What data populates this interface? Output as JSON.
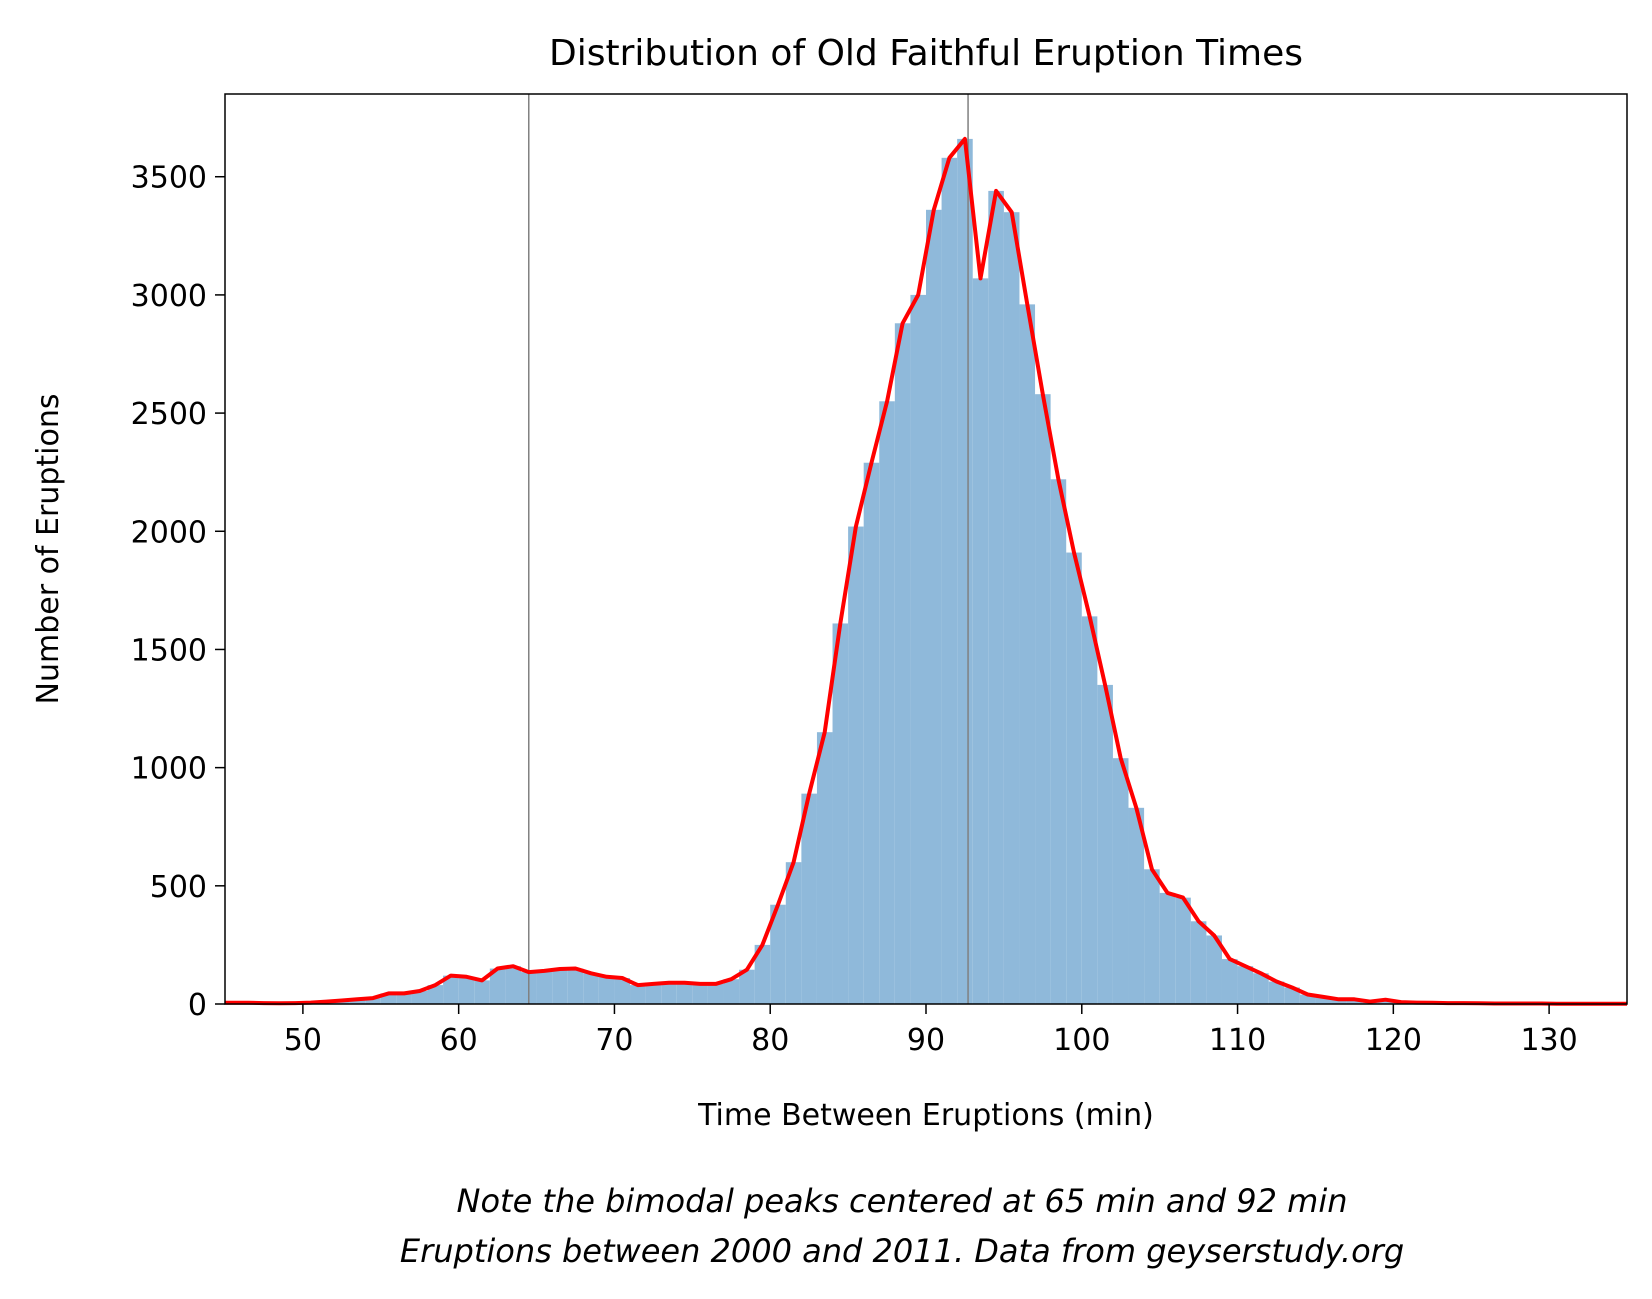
{
  "chart_data": {
    "type": "bar",
    "title": "Distribution of Old Faithful Eruption Times",
    "xlabel": "Time Between Eruptions (min)",
    "ylabel": "Number of Eruptions",
    "xlim": [
      45,
      135
    ],
    "ylim": [
      0,
      3850
    ],
    "xticks": [
      50,
      60,
      70,
      80,
      90,
      100,
      110,
      120,
      130
    ],
    "yticks": [
      0,
      500,
      1000,
      1500,
      2000,
      2500,
      3000,
      3500
    ],
    "bin_width": 1,
    "bins": [
      [
        45,
        5
      ],
      [
        46,
        5
      ],
      [
        47,
        4
      ],
      [
        48,
        3
      ],
      [
        49,
        4
      ],
      [
        50,
        6
      ],
      [
        51,
        10
      ],
      [
        52,
        15
      ],
      [
        53,
        20
      ],
      [
        54,
        25
      ],
      [
        55,
        45
      ],
      [
        56,
        45
      ],
      [
        57,
        55
      ],
      [
        58,
        80
      ],
      [
        59,
        120
      ],
      [
        60,
        115
      ],
      [
        61,
        100
      ],
      [
        62,
        150
      ],
      [
        63,
        160
      ],
      [
        64,
        135
      ],
      [
        65,
        140
      ],
      [
        66,
        148
      ],
      [
        67,
        150
      ],
      [
        68,
        130
      ],
      [
        69,
        115
      ],
      [
        70,
        110
      ],
      [
        71,
        80
      ],
      [
        72,
        85
      ],
      [
        73,
        90
      ],
      [
        74,
        90
      ],
      [
        75,
        85
      ],
      [
        76,
        85
      ],
      [
        77,
        105
      ],
      [
        78,
        145
      ],
      [
        79,
        250
      ],
      [
        80,
        420
      ],
      [
        81,
        600
      ],
      [
        82,
        890
      ],
      [
        83,
        1150
      ],
      [
        84,
        1610
      ],
      [
        85,
        2020
      ],
      [
        86,
        2290
      ],
      [
        87,
        2550
      ],
      [
        88,
        2880
      ],
      [
        89,
        3000
      ],
      [
        90,
        3360
      ],
      [
        91,
        3580
      ],
      [
        92,
        3660
      ],
      [
        93,
        3070
      ],
      [
        94,
        3440
      ],
      [
        95,
        3350
      ],
      [
        96,
        2960
      ],
      [
        97,
        2580
      ],
      [
        98,
        2220
      ],
      [
        99,
        1910
      ],
      [
        100,
        1640
      ],
      [
        101,
        1350
      ],
      [
        102,
        1040
      ],
      [
        103,
        830
      ],
      [
        104,
        570
      ],
      [
        105,
        470
      ],
      [
        106,
        450
      ],
      [
        107,
        350
      ],
      [
        108,
        290
      ],
      [
        109,
        190
      ],
      [
        110,
        160
      ],
      [
        111,
        130
      ],
      [
        112,
        95
      ],
      [
        113,
        70
      ],
      [
        114,
        40
      ],
      [
        115,
        30
      ],
      [
        116,
        20
      ],
      [
        117,
        20
      ],
      [
        118,
        10
      ],
      [
        119,
        18
      ],
      [
        120,
        8
      ],
      [
        121,
        6
      ],
      [
        122,
        5
      ],
      [
        123,
        4
      ],
      [
        124,
        4
      ],
      [
        125,
        3
      ],
      [
        126,
        2
      ],
      [
        127,
        2
      ],
      [
        128,
        2
      ],
      [
        129,
        2
      ],
      [
        130,
        1
      ],
      [
        131,
        1
      ],
      [
        132,
        1
      ],
      [
        133,
        1
      ],
      [
        134,
        1
      ]
    ],
    "vlines": [
      64.5,
      92.7
    ],
    "colors": {
      "bars": "#8fb9da",
      "curve": "#ff0000",
      "vline": "#808080"
    }
  },
  "notes": {
    "line1": "Note the bimodal peaks centered at 65 min and 92 min",
    "line2": "Eruptions between 2000 and 2011. Data from geyserstudy.org"
  }
}
